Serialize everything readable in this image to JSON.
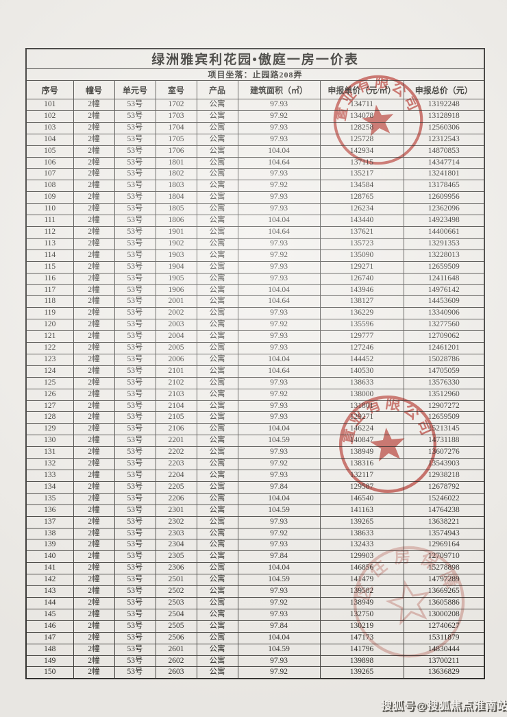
{
  "title": "绿洲雅宾利花园•傲庭一房一价表",
  "subtitle": "项目坐落：止园路208弄",
  "table": {
    "headers": [
      "序号",
      "幢号",
      "单元号",
      "室号",
      "产品",
      "建筑面积（㎡）",
      "申报单价（元/㎡）",
      "申报总价（元）"
    ],
    "rows": [
      [
        "101",
        "2幢",
        "53号",
        "1702",
        "公寓",
        "97.93",
        "134711",
        "13192248"
      ],
      [
        "102",
        "2幢",
        "53号",
        "1703",
        "公寓",
        "97.92",
        "134078",
        "13128918"
      ],
      [
        "103",
        "2幢",
        "53号",
        "1704",
        "公寓",
        "97.93",
        "128258",
        "12560306"
      ],
      [
        "104",
        "2幢",
        "53号",
        "1705",
        "公寓",
        "97.93",
        "125728",
        "12312543"
      ],
      [
        "105",
        "2幢",
        "53号",
        "1706",
        "公寓",
        "104.04",
        "142934",
        "14870853"
      ],
      [
        "106",
        "2幢",
        "53号",
        "1801",
        "公寓",
        "104.64",
        "137115",
        "14347714"
      ],
      [
        "107",
        "2幢",
        "53号",
        "1802",
        "公寓",
        "97.93",
        "135217",
        "13241801"
      ],
      [
        "108",
        "2幢",
        "53号",
        "1803",
        "公寓",
        "97.92",
        "134584",
        "13178465"
      ],
      [
        "109",
        "2幢",
        "53号",
        "1804",
        "公寓",
        "97.93",
        "128765",
        "12609956"
      ],
      [
        "110",
        "2幢",
        "53号",
        "1805",
        "公寓",
        "97.93",
        "126234",
        "12362096"
      ],
      [
        "111",
        "2幢",
        "53号",
        "1806",
        "公寓",
        "104.04",
        "143440",
        "14923498"
      ],
      [
        "112",
        "2幢",
        "53号",
        "1901",
        "公寓",
        "104.64",
        "137621",
        "14400661"
      ],
      [
        "113",
        "2幢",
        "53号",
        "1902",
        "公寓",
        "97.93",
        "135723",
        "13291353"
      ],
      [
        "114",
        "2幢",
        "53号",
        "1903",
        "公寓",
        "97.92",
        "135090",
        "13228013"
      ],
      [
        "115",
        "2幢",
        "53号",
        "1904",
        "公寓",
        "97.93",
        "129271",
        "12659509"
      ],
      [
        "116",
        "2幢",
        "53号",
        "1905",
        "公寓",
        "97.93",
        "126740",
        "12411648"
      ],
      [
        "117",
        "2幢",
        "53号",
        "1906",
        "公寓",
        "104.04",
        "143946",
        "14976142"
      ],
      [
        "118",
        "2幢",
        "53号",
        "2001",
        "公寓",
        "104.64",
        "138127",
        "14453609"
      ],
      [
        "119",
        "2幢",
        "53号",
        "2002",
        "公寓",
        "97.93",
        "136229",
        "13340906"
      ],
      [
        "120",
        "2幢",
        "53号",
        "2003",
        "公寓",
        "97.92",
        "135596",
        "13277560"
      ],
      [
        "121",
        "2幢",
        "53号",
        "2004",
        "公寓",
        "97.93",
        "129777",
        "12709062"
      ],
      [
        "122",
        "2幢",
        "53号",
        "2005",
        "公寓",
        "97.93",
        "127246",
        "12461201"
      ],
      [
        "123",
        "2幢",
        "53号",
        "2006",
        "公寓",
        "104.04",
        "144452",
        "15028786"
      ],
      [
        "124",
        "2幢",
        "53号",
        "2101",
        "公寓",
        "104.64",
        "140530",
        "14705059"
      ],
      [
        "125",
        "2幢",
        "53号",
        "2102",
        "公寓",
        "97.93",
        "138633",
        "13576330"
      ],
      [
        "126",
        "2幢",
        "53号",
        "2103",
        "公寓",
        "97.92",
        "138000",
        "13512960"
      ],
      [
        "127",
        "2幢",
        "53号",
        "2104",
        "公寓",
        "97.93",
        "131801",
        "12907272"
      ],
      [
        "128",
        "2幢",
        "53号",
        "2105",
        "公寓",
        "97.93",
        "129271",
        "12659509"
      ],
      [
        "129",
        "2幢",
        "53号",
        "2106",
        "公寓",
        "104.04",
        "146224",
        "15213145"
      ],
      [
        "130",
        "2幢",
        "53号",
        "2201",
        "公寓",
        "104.59",
        "140847",
        "14731188"
      ],
      [
        "131",
        "2幢",
        "53号",
        "2202",
        "公寓",
        "97.93",
        "138949",
        "13607276"
      ],
      [
        "132",
        "2幢",
        "53号",
        "2203",
        "公寓",
        "97.92",
        "138316",
        "13543903"
      ],
      [
        "133",
        "2幢",
        "53号",
        "2204",
        "公寓",
        "97.93",
        "132117",
        "12938218"
      ],
      [
        "134",
        "2幢",
        "53号",
        "2205",
        "公寓",
        "97.84",
        "129587",
        "12678792"
      ],
      [
        "135",
        "2幢",
        "53号",
        "2206",
        "公寓",
        "104.04",
        "146540",
        "15246022"
      ],
      [
        "136",
        "2幢",
        "53号",
        "2301",
        "公寓",
        "104.59",
        "141163",
        "14764238"
      ],
      [
        "137",
        "2幢",
        "53号",
        "2302",
        "公寓",
        "97.93",
        "139265",
        "13638221"
      ],
      [
        "138",
        "2幢",
        "53号",
        "2303",
        "公寓",
        "97.92",
        "138633",
        "13574943"
      ],
      [
        "139",
        "2幢",
        "53号",
        "2304",
        "公寓",
        "97.93",
        "132433",
        "12969164"
      ],
      [
        "140",
        "2幢",
        "53号",
        "2305",
        "公寓",
        "97.84",
        "129903",
        "12709710"
      ],
      [
        "141",
        "2幢",
        "53号",
        "2306",
        "公寓",
        "104.04",
        "146856",
        "15278898"
      ],
      [
        "142",
        "2幢",
        "53号",
        "2501",
        "公寓",
        "104.59",
        "141479",
        "14797289"
      ],
      [
        "143",
        "2幢",
        "53号",
        "2502",
        "公寓",
        "97.93",
        "139582",
        "13669265"
      ],
      [
        "144",
        "2幢",
        "53号",
        "2503",
        "公寓",
        "97.92",
        "138949",
        "13605886"
      ],
      [
        "145",
        "2幢",
        "53号",
        "2504",
        "公寓",
        "97.93",
        "132750",
        "13000208"
      ],
      [
        "146",
        "2幢",
        "53号",
        "2505",
        "公寓",
        "97.84",
        "130219",
        "12740627"
      ],
      [
        "147",
        "2幢",
        "53号",
        "2506",
        "公寓",
        "104.04",
        "147173",
        "15311879"
      ],
      [
        "148",
        "2幢",
        "53号",
        "2601",
        "公寓",
        "104.59",
        "141796",
        "14830444"
      ],
      [
        "149",
        "2幢",
        "53号",
        "2602",
        "公寓",
        "97.93",
        "139898",
        "13700211"
      ],
      [
        "150",
        "2幢",
        "53号",
        "2603",
        "公寓",
        "97.92",
        "139265",
        "13636829"
      ]
    ]
  },
  "stamps": [
    {
      "text": "置业有限公司",
      "color": "#c13a31"
    },
    {
      "text": "置业有限公司",
      "color": "#c13a31"
    },
    {
      "text": "区住房保障",
      "color": "#cd7f77"
    }
  ],
  "watermark": "搜狐号@搜狐焦点淮南站"
}
